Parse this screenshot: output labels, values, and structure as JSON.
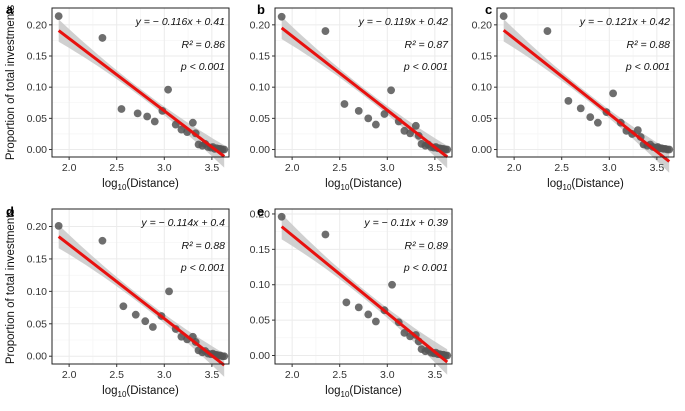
{
  "figure": {
    "ylabel": "Proportion of total investments",
    "xlabel_base": "log",
    "xlabel_sub": "10",
    "xlabel_rest": "(Distance)"
  },
  "colors": {
    "points": "#555555",
    "fit_line": "#e8110f",
    "ci_band": "#c8c8c8",
    "panel_border": "#222222",
    "grid": "#ebebeb"
  },
  "chart_data": [
    {
      "type": "scatter",
      "panel_label": "a",
      "xlabel": "log10(Distance)",
      "ylabel": "Proportion of total investments",
      "xlim": [
        1.82,
        3.68
      ],
      "ylim": [
        -0.012,
        0.227
      ],
      "xticks": [
        "2.0",
        "2.5",
        "3.0",
        "3.5"
      ],
      "yticks": [
        "0.00",
        "0.05",
        "0.10",
        "0.15",
        "0.20"
      ],
      "grid": true,
      "fit": {
        "slope": -0.116,
        "intercept": 0.41,
        "ci_halfwidth_ends": 0.018
      },
      "annotation": {
        "equation": "y = − 0.116x + 0.41",
        "r2": "R² = 0.86",
        "p": "p < 0.001"
      },
      "points": [
        [
          1.89,
          0.214
        ],
        [
          2.35,
          0.179
        ],
        [
          2.55,
          0.065
        ],
        [
          2.72,
          0.058
        ],
        [
          2.82,
          0.053
        ],
        [
          2.9,
          0.045
        ],
        [
          2.98,
          0.062
        ],
        [
          3.04,
          0.096
        ],
        [
          3.12,
          0.04
        ],
        [
          3.18,
          0.032
        ],
        [
          3.24,
          0.028
        ],
        [
          3.3,
          0.043
        ],
        [
          3.33,
          0.026
        ],
        [
          3.36,
          0.008
        ],
        [
          3.4,
          0.006
        ],
        [
          3.43,
          0.009
        ],
        [
          3.46,
          0.004
        ],
        [
          3.49,
          0.003
        ],
        [
          3.51,
          0.004
        ],
        [
          3.53,
          0.001
        ],
        [
          3.55,
          0.002
        ],
        [
          3.57,
          0.001
        ],
        [
          3.59,
          0.001
        ],
        [
          3.61,
          0.0
        ],
        [
          3.63,
          0.0
        ]
      ]
    },
    {
      "type": "scatter",
      "panel_label": "b",
      "xlabel": "log10(Distance)",
      "ylabel": "",
      "xlim": [
        1.82,
        3.68
      ],
      "ylim": [
        -0.012,
        0.227
      ],
      "xticks": [
        "2.0",
        "2.5",
        "3.0",
        "3.5"
      ],
      "yticks": [
        "0.00",
        "0.05",
        "0.10",
        "0.15",
        "0.20"
      ],
      "grid": true,
      "fit": {
        "slope": -0.119,
        "intercept": 0.42,
        "ci_halfwidth_ends": 0.018
      },
      "annotation": {
        "equation": "y = − 0.119x + 0.42",
        "r2": "R² = 0.87",
        "p": "p < 0.001"
      },
      "points": [
        [
          1.89,
          0.213
        ],
        [
          2.35,
          0.19
        ],
        [
          2.55,
          0.073
        ],
        [
          2.7,
          0.062
        ],
        [
          2.8,
          0.05
        ],
        [
          2.88,
          0.04
        ],
        [
          2.97,
          0.057
        ],
        [
          3.04,
          0.095
        ],
        [
          3.12,
          0.045
        ],
        [
          3.18,
          0.03
        ],
        [
          3.24,
          0.026
        ],
        [
          3.3,
          0.038
        ],
        [
          3.33,
          0.022
        ],
        [
          3.36,
          0.009
        ],
        [
          3.4,
          0.006
        ],
        [
          3.43,
          0.008
        ],
        [
          3.46,
          0.004
        ],
        [
          3.49,
          0.003
        ],
        [
          3.51,
          0.004
        ],
        [
          3.53,
          0.002
        ],
        [
          3.55,
          0.002
        ],
        [
          3.57,
          0.001
        ],
        [
          3.59,
          0.001
        ],
        [
          3.61,
          0.0
        ],
        [
          3.63,
          0.0
        ]
      ]
    },
    {
      "type": "scatter",
      "panel_label": "c",
      "xlabel": "log10(Distance)",
      "ylabel": "",
      "xlim": [
        1.82,
        3.68
      ],
      "ylim": [
        -0.012,
        0.227
      ],
      "xticks": [
        "2.0",
        "2.5",
        "3.0",
        "3.5"
      ],
      "yticks": [
        "0.00",
        "0.05",
        "0.10",
        "0.15",
        "0.20"
      ],
      "grid": true,
      "fit": {
        "slope": -0.121,
        "intercept": 0.42,
        "ci_halfwidth_ends": 0.018
      },
      "annotation": {
        "equation": "y = − 0.121x + 0.42",
        "r2": "R² = 0.88",
        "p": "p < 0.001"
      },
      "points": [
        [
          1.89,
          0.214
        ],
        [
          2.35,
          0.19
        ],
        [
          2.57,
          0.078
        ],
        [
          2.7,
          0.066
        ],
        [
          2.8,
          0.052
        ],
        [
          2.88,
          0.043
        ],
        [
          2.97,
          0.06
        ],
        [
          3.04,
          0.09
        ],
        [
          3.12,
          0.043
        ],
        [
          3.18,
          0.03
        ],
        [
          3.24,
          0.025
        ],
        [
          3.3,
          0.031
        ],
        [
          3.33,
          0.02
        ],
        [
          3.36,
          0.008
        ],
        [
          3.4,
          0.006
        ],
        [
          3.43,
          0.008
        ],
        [
          3.46,
          0.004
        ],
        [
          3.49,
          0.003
        ],
        [
          3.51,
          0.004
        ],
        [
          3.53,
          0.002
        ],
        [
          3.55,
          0.002
        ],
        [
          3.57,
          0.001
        ],
        [
          3.59,
          0.001
        ],
        [
          3.61,
          0.0
        ],
        [
          3.63,
          0.0
        ]
      ]
    },
    {
      "type": "scatter",
      "panel_label": "d",
      "xlabel": "log10(Distance)",
      "ylabel": "Proportion of total investments",
      "xlim": [
        1.82,
        3.68
      ],
      "ylim": [
        -0.012,
        0.227
      ],
      "xticks": [
        "2.0",
        "2.5",
        "3.0",
        "3.5"
      ],
      "yticks": [
        "0.00",
        "0.05",
        "0.10",
        "0.15",
        "0.20"
      ],
      "grid": true,
      "fit": {
        "slope": -0.114,
        "intercept": 0.4,
        "ci_halfwidth_ends": 0.018
      },
      "annotation": {
        "equation": "y = − 0.114x + 0.4",
        "r2": "R² = 0.88",
        "p": "p < 0.001"
      },
      "points": [
        [
          1.89,
          0.201
        ],
        [
          2.35,
          0.178
        ],
        [
          2.57,
          0.077
        ],
        [
          2.7,
          0.064
        ],
        [
          2.8,
          0.054
        ],
        [
          2.88,
          0.045
        ],
        [
          2.97,
          0.062
        ],
        [
          3.05,
          0.1
        ],
        [
          3.12,
          0.042
        ],
        [
          3.18,
          0.03
        ],
        [
          3.24,
          0.026
        ],
        [
          3.3,
          0.03
        ],
        [
          3.33,
          0.022
        ],
        [
          3.36,
          0.009
        ],
        [
          3.4,
          0.006
        ],
        [
          3.43,
          0.008
        ],
        [
          3.46,
          0.004
        ],
        [
          3.49,
          0.003
        ],
        [
          3.51,
          0.004
        ],
        [
          3.53,
          0.002
        ],
        [
          3.55,
          0.002
        ],
        [
          3.57,
          0.001
        ],
        [
          3.59,
          0.001
        ],
        [
          3.61,
          0.0
        ],
        [
          3.63,
          0.0
        ]
      ]
    },
    {
      "type": "scatter",
      "panel_label": "e",
      "xlabel": "log10(Distance)",
      "ylabel": "",
      "xlim": [
        1.82,
        3.68
      ],
      "ylim": [
        -0.012,
        0.207
      ],
      "xticks": [
        "2.0",
        "2.5",
        "3.0",
        "3.5"
      ],
      "yticks": [
        "0.00",
        "0.05",
        "0.10",
        "0.15",
        "0.20"
      ],
      "grid": true,
      "fit": {
        "slope": -0.11,
        "intercept": 0.39,
        "ci_halfwidth_ends": 0.018
      },
      "annotation": {
        "equation": "y = − 0.11x + 0.39",
        "r2": "R² = 0.89",
        "p": "p < 0.001"
      },
      "points": [
        [
          1.89,
          0.196
        ],
        [
          2.35,
          0.171
        ],
        [
          2.57,
          0.075
        ],
        [
          2.7,
          0.068
        ],
        [
          2.8,
          0.058
        ],
        [
          2.88,
          0.048
        ],
        [
          2.97,
          0.064
        ],
        [
          3.05,
          0.1
        ],
        [
          3.12,
          0.047
        ],
        [
          3.18,
          0.032
        ],
        [
          3.24,
          0.027
        ],
        [
          3.3,
          0.029
        ],
        [
          3.33,
          0.02
        ],
        [
          3.36,
          0.009
        ],
        [
          3.4,
          0.006
        ],
        [
          3.43,
          0.008
        ],
        [
          3.46,
          0.004
        ],
        [
          3.49,
          0.003
        ],
        [
          3.51,
          0.004
        ],
        [
          3.53,
          0.002
        ],
        [
          3.55,
          0.002
        ],
        [
          3.57,
          0.001
        ],
        [
          3.59,
          0.001
        ],
        [
          3.61,
          0.0
        ],
        [
          3.63,
          0.0
        ]
      ]
    }
  ]
}
